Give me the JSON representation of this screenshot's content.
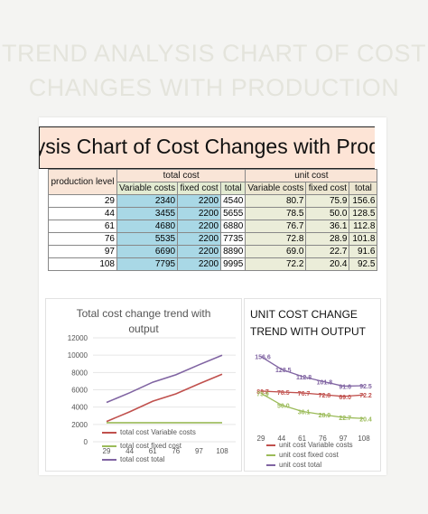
{
  "page": {
    "heading_line1": "TREND ANALYSIS CHART OF COST",
    "heading_line2": "CHANGES WITH PRODUCTION"
  },
  "sheet": {
    "title": "Analysis Chart of Cost Changes with Prod",
    "header": {
      "production_level": "production level",
      "total_cost": "total cost",
      "unit_cost": "unit cost",
      "variable_costs": "Variable costs",
      "fixed_cost": "fixed cost",
      "total": "total"
    },
    "rows": [
      {
        "production": "29",
        "tc_variable": "2340",
        "tc_fixed": "2200",
        "tc_total": "4540",
        "uc_variable": "80.7",
        "uc_fixed": "75.9",
        "uc_total": "156.6"
      },
      {
        "production": "44",
        "tc_variable": "3455",
        "tc_fixed": "2200",
        "tc_total": "5655",
        "uc_variable": "78.5",
        "uc_fixed": "50.0",
        "uc_total": "128.5"
      },
      {
        "production": "61",
        "tc_variable": "4680",
        "tc_fixed": "2200",
        "tc_total": "6880",
        "uc_variable": "76.7",
        "uc_fixed": "36.1",
        "uc_total": "112.8"
      },
      {
        "production": "76",
        "tc_variable": "5535",
        "tc_fixed": "2200",
        "tc_total": "7735",
        "uc_variable": "72.8",
        "uc_fixed": "28.9",
        "uc_total": "101.8"
      },
      {
        "production": "97",
        "tc_variable": "6690",
        "tc_fixed": "2200",
        "tc_total": "8890",
        "uc_variable": "69.0",
        "uc_fixed": "22.7",
        "uc_total": "91.6"
      },
      {
        "production": "108",
        "tc_variable": "7795",
        "tc_fixed": "2200",
        "tc_total": "9995",
        "uc_variable": "72.2",
        "uc_fixed": "20.4",
        "uc_total": "92.5"
      }
    ]
  },
  "chart_data": [
    {
      "type": "line",
      "title": "Total cost change trend with output",
      "categories": [
        "29",
        "44",
        "61",
        "76",
        "97",
        "108"
      ],
      "ylim": [
        0,
        12000
      ],
      "yticks": [
        "0",
        "2000",
        "4000",
        "6000",
        "8000",
        "10000",
        "12000"
      ],
      "xlabel": "",
      "ylabel": "",
      "grid": true,
      "legend_position": "bottom",
      "series": [
        {
          "name": "total cost Variable costs",
          "color": "#c0504d",
          "values": [
            2340,
            3455,
            4680,
            5535,
            6690,
            7795
          ]
        },
        {
          "name": "total cost fixed cost",
          "color": "#9bbb59",
          "values": [
            2200,
            2200,
            2200,
            2200,
            2200,
            2200
          ]
        },
        {
          "name": "total cost total",
          "color": "#8064a2",
          "values": [
            4540,
            5655,
            6880,
            7735,
            8890,
            9995
          ]
        }
      ]
    },
    {
      "type": "line",
      "title": "UNIT COST CHANGE TREND WITH OUTPUT",
      "categories": [
        "29",
        "44",
        "61",
        "76",
        "97",
        "108"
      ],
      "xlabel": "",
      "ylabel": "",
      "grid": false,
      "legend_position": "bottom",
      "series": [
        {
          "name": "unit cost Variable costs",
          "color": "#c0504d",
          "values": [
            80.7,
            78.5,
            76.7,
            72.8,
            69.0,
            72.2
          ],
          "labels": [
            "80.7",
            "78.5",
            "76.7",
            "72.8",
            "69.0",
            "72.2"
          ]
        },
        {
          "name": "unit cost fixed cost",
          "color": "#9bbb59",
          "values": [
            75.9,
            50.0,
            36.1,
            28.9,
            22.7,
            20.4
          ],
          "labels": [
            "75.9",
            "50.0",
            "36.1",
            "28.9",
            "22.7",
            "20.4"
          ]
        },
        {
          "name": "unit cost total",
          "color": "#8064a2",
          "values": [
            156.6,
            128.5,
            112.8,
            101.8,
            91.6,
            92.5
          ],
          "labels": [
            "156.6",
            "128.5",
            "112.8",
            "101.8",
            "91.6",
            "92.5"
          ]
        }
      ]
    }
  ]
}
